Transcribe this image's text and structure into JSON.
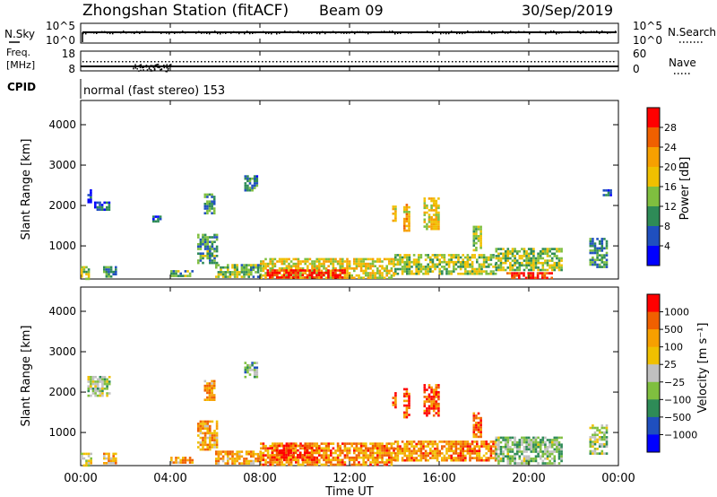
{
  "header": {
    "station": "Zhongshan Station (fitACF)",
    "beam": "Beam 09",
    "date": "30/Sep/2019"
  },
  "noise_panel": {
    "left_label": "N.Sky",
    "right_label": "N.Search",
    "left_ticks": [
      "10^5",
      "10^0"
    ],
    "right_ticks": [
      "10^5",
      "10^0"
    ]
  },
  "freq_panel": {
    "left_label_1": "Freq.",
    "left_label_2": "[MHz]",
    "right_label": "Nave",
    "left_ticks": [
      "18",
      "8"
    ],
    "right_ticks": [
      "60",
      "0"
    ]
  },
  "cpid": {
    "label": "CPID",
    "mode": "normal (fast stereo) 153"
  },
  "colors": {
    "power_scale": [
      "#0000ff",
      "#1f4fbf",
      "#2e8b57",
      "#7fbf3f",
      "#f0c000",
      "#f7a000",
      "#f06000",
      "#ff0000"
    ],
    "velocity_scale": [
      "#ff0000",
      "#f06000",
      "#f7a000",
      "#f0c000",
      "#c0c0c0",
      "#7fbf3f",
      "#2e8b57",
      "#1f4fbf",
      "#0000ff"
    ]
  },
  "chart_data": [
    {
      "type": "heatmap",
      "name": "power",
      "xlabel": "",
      "ylabel": "Slant Range [km]",
      "x_range_hours": [
        0,
        24
      ],
      "ylim": [
        180,
        4600
      ],
      "y_ticks": [
        1000,
        2000,
        3000,
        4000
      ],
      "colorbar": {
        "label": "Power [dB]",
        "ticks": [
          "4",
          "8",
          "12",
          "16",
          "20",
          "24",
          "28"
        ],
        "range": [
          0,
          32
        ]
      },
      "echo_regions": [
        {
          "t": [
            0.0,
            0.4
          ],
          "r": [
            180,
            500
          ],
          "level": 0.45
        },
        {
          "t": [
            0.3,
            0.5
          ],
          "r": [
            2100,
            2400
          ],
          "level": 0.15
        },
        {
          "t": [
            0.6,
            1.3
          ],
          "r": [
            1900,
            2100
          ],
          "level": 0.2
        },
        {
          "t": [
            1.0,
            1.6
          ],
          "r": [
            250,
            500
          ],
          "level": 0.35
        },
        {
          "t": [
            3.2,
            3.6
          ],
          "r": [
            1600,
            1750
          ],
          "level": 0.2
        },
        {
          "t": [
            4.0,
            5.0
          ],
          "r": [
            250,
            400
          ],
          "level": 0.35
        },
        {
          "t": [
            5.2,
            6.1
          ],
          "r": [
            600,
            1300
          ],
          "level": 0.35
        },
        {
          "t": [
            5.5,
            6.0
          ],
          "r": [
            1800,
            2300
          ],
          "level": 0.3
        },
        {
          "t": [
            7.3,
            7.9
          ],
          "r": [
            2400,
            2750
          ],
          "level": 0.25
        },
        {
          "t": [
            6.0,
            8.0
          ],
          "r": [
            250,
            550
          ],
          "level": 0.4
        },
        {
          "t": [
            8.0,
            14.0
          ],
          "r": [
            220,
            700
          ],
          "level": 0.55
        },
        {
          "t": [
            8.3,
            11.8
          ],
          "r": [
            220,
            420
          ],
          "level": 0.95
        },
        {
          "t": [
            14.0,
            18.5
          ],
          "r": [
            300,
            800
          ],
          "level": 0.45
        },
        {
          "t": [
            13.9,
            14.1
          ],
          "r": [
            1600,
            2000
          ],
          "level": 0.6
        },
        {
          "t": [
            14.4,
            14.7
          ],
          "r": [
            1400,
            2100
          ],
          "level": 0.65
        },
        {
          "t": [
            15.3,
            16.0
          ],
          "r": [
            1400,
            2200
          ],
          "level": 0.55
        },
        {
          "t": [
            17.5,
            17.9
          ],
          "r": [
            900,
            1500
          ],
          "level": 0.45
        },
        {
          "t": [
            18.5,
            21.5
          ],
          "r": [
            400,
            950
          ],
          "level": 0.45
        },
        {
          "t": [
            19.0,
            21.0
          ],
          "r": [
            200,
            350
          ],
          "level": 0.9
        },
        {
          "t": [
            22.7,
            23.5
          ],
          "r": [
            500,
            1200
          ],
          "level": 0.3
        },
        {
          "t": [
            23.3,
            23.7
          ],
          "r": [
            2250,
            2400
          ],
          "level": 0.2
        }
      ]
    },
    {
      "type": "heatmap",
      "name": "velocity",
      "xlabel": "Time UT",
      "ylabel": "Slant Range [km]",
      "x_range_hours": [
        0,
        24
      ],
      "x_ticks": [
        "00:00",
        "04:00",
        "08:00",
        "12:00",
        "16:00",
        "20:00",
        "00:00"
      ],
      "ylim": [
        180,
        4600
      ],
      "y_ticks": [
        1000,
        2000,
        3000,
        4000
      ],
      "colorbar": {
        "label": "Velocity [m s⁻¹]",
        "ticks": [
          "1000",
          "500",
          "100",
          "25",
          "−25",
          "−100",
          "−500",
          "−1000"
        ]
      },
      "echo_regions": [
        {
          "t": [
            0.0,
            0.5
          ],
          "r": [
            180,
            500
          ],
          "level": 0.5
        },
        {
          "t": [
            0.3,
            1.3
          ],
          "r": [
            1900,
            2400
          ],
          "level": 0.55
        },
        {
          "t": [
            1.0,
            1.6
          ],
          "r": [
            250,
            500
          ],
          "level": 0.35
        },
        {
          "t": [
            4.0,
            5.0
          ],
          "r": [
            250,
            400
          ],
          "level": 0.3
        },
        {
          "t": [
            5.2,
            6.1
          ],
          "r": [
            600,
            1300
          ],
          "level": 0.3
        },
        {
          "t": [
            5.5,
            6.0
          ],
          "r": [
            1800,
            2300
          ],
          "level": 0.3
        },
        {
          "t": [
            7.3,
            7.9
          ],
          "r": [
            2400,
            2750
          ],
          "level": 0.65
        },
        {
          "t": [
            6.0,
            8.0
          ],
          "r": [
            250,
            550
          ],
          "level": 0.3
        },
        {
          "t": [
            8.0,
            14.0
          ],
          "r": [
            220,
            750
          ],
          "level": 0.25
        },
        {
          "t": [
            8.5,
            10.5
          ],
          "r": [
            350,
            700
          ],
          "level": 0.1
        },
        {
          "t": [
            13.9,
            14.1
          ],
          "r": [
            1600,
            2000
          ],
          "level": 0.15
        },
        {
          "t": [
            14.4,
            14.7
          ],
          "r": [
            1400,
            2100
          ],
          "level": 0.15
        },
        {
          "t": [
            15.3,
            16.0
          ],
          "r": [
            1400,
            2200
          ],
          "level": 0.15
        },
        {
          "t": [
            14.0,
            18.5
          ],
          "r": [
            300,
            800
          ],
          "level": 0.25
        },
        {
          "t": [
            17.5,
            17.9
          ],
          "r": [
            900,
            1500
          ],
          "level": 0.2
        },
        {
          "t": [
            18.5,
            21.5
          ],
          "r": [
            250,
            900
          ],
          "level": 0.6
        },
        {
          "t": [
            22.7,
            23.5
          ],
          "r": [
            500,
            1200
          ],
          "level": 0.55
        }
      ]
    }
  ]
}
